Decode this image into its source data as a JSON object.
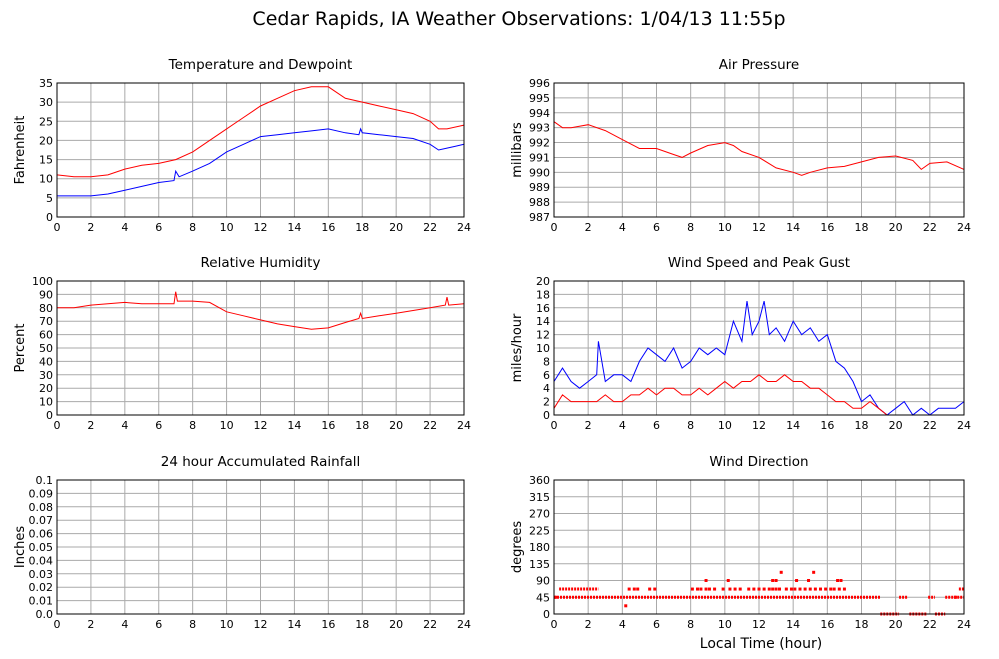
{
  "title": "Cedar Rapids, IA Weather Observations: 1/04/13 11:55p",
  "footer_xlabel": "Local Time (hour)",
  "colors": {
    "primary": "#ff0000",
    "secondary": "#0000ff",
    "grid": "#aaaaaa",
    "axis": "#000000"
  },
  "chart_data": [
    {
      "id": "temp",
      "type": "line",
      "title": "Temperature and Dewpoint",
      "xlabel": "",
      "ylabel": "Fahrenheit",
      "xlim": [
        0,
        24
      ],
      "ylim": [
        0,
        35
      ],
      "xticks": [
        "0",
        "2",
        "4",
        "6",
        "8",
        "10",
        "12",
        "14",
        "16",
        "18",
        "20",
        "22",
        "24"
      ],
      "yticks": [
        "0",
        "5",
        "10",
        "15",
        "20",
        "25",
        "30",
        "35"
      ],
      "grid": true,
      "series": [
        {
          "color": "#ff0000",
          "x": [
            0,
            1,
            2,
            3,
            4,
            5,
            6,
            7,
            8,
            9,
            10,
            11,
            12,
            13,
            14,
            15,
            16,
            17,
            18,
            19,
            20,
            21,
            22,
            22.5,
            23,
            24
          ],
          "y": [
            11,
            10.5,
            10.5,
            11,
            12.5,
            13.5,
            14,
            15,
            17,
            20,
            23,
            26,
            29,
            31,
            33,
            34,
            34,
            31,
            30,
            29,
            28,
            27,
            25,
            23,
            23,
            24
          ]
        },
        {
          "color": "#0000ff",
          "x": [
            0,
            1,
            2,
            3,
            4,
            5,
            6,
            6.9,
            7,
            7.2,
            8,
            9,
            10,
            11,
            12,
            13,
            14,
            15,
            16,
            17,
            17.8,
            17.9,
            18,
            19,
            20,
            21,
            22,
            22.5,
            23,
            23.5,
            24
          ],
          "y": [
            5.5,
            5.5,
            5.5,
            6,
            7,
            8,
            9,
            9.5,
            12,
            10.5,
            12,
            14,
            17,
            19,
            21,
            21.5,
            22,
            22.5,
            23,
            22,
            21.5,
            23,
            22,
            21.5,
            21,
            20.5,
            19,
            17.5,
            18,
            18.5,
            19
          ]
        }
      ]
    },
    {
      "id": "pressure",
      "type": "line",
      "title": "Air Pressure",
      "xlabel": "",
      "ylabel": "millibars",
      "xlim": [
        0,
        24
      ],
      "ylim": [
        987,
        996
      ],
      "xticks": [
        "0",
        "2",
        "4",
        "6",
        "8",
        "10",
        "12",
        "14",
        "16",
        "18",
        "20",
        "22",
        "24"
      ],
      "yticks": [
        "987",
        "988",
        "989",
        "990",
        "991",
        "992",
        "993",
        "994",
        "995",
        "996"
      ],
      "grid": true,
      "series": [
        {
          "color": "#ff0000",
          "x": [
            0,
            0.5,
            1,
            2,
            3,
            4,
            5,
            6,
            7,
            7.5,
            8,
            9,
            10,
            10.5,
            11,
            12,
            13,
            14,
            14.5,
            15,
            16,
            17,
            18,
            19,
            20,
            21,
            21.5,
            22,
            23,
            24
          ],
          "y": [
            993.4,
            993,
            993,
            993.2,
            992.8,
            992.2,
            991.6,
            991.6,
            991.2,
            991,
            991.3,
            991.8,
            992,
            991.8,
            991.4,
            991,
            990.3,
            990,
            989.8,
            990,
            990.3,
            990.4,
            990.7,
            991,
            991.1,
            990.8,
            990.2,
            990.6,
            990.7,
            990.2
          ]
        }
      ]
    },
    {
      "id": "humidity",
      "type": "line",
      "title": "Relative Humidity",
      "xlabel": "",
      "ylabel": "Percent",
      "xlim": [
        0,
        24
      ],
      "ylim": [
        0,
        100
      ],
      "xticks": [
        "0",
        "2",
        "4",
        "6",
        "8",
        "10",
        "12",
        "14",
        "16",
        "18",
        "20",
        "22",
        "24"
      ],
      "yticks": [
        "0",
        "10",
        "20",
        "30",
        "40",
        "50",
        "60",
        "70",
        "80",
        "90",
        "100"
      ],
      "grid": true,
      "series": [
        {
          "color": "#ff0000",
          "x": [
            0,
            1,
            2,
            3,
            4,
            5,
            6,
            6.9,
            7,
            7.1,
            8,
            9,
            10,
            11,
            12,
            13,
            14,
            15,
            16,
            17,
            17.8,
            17.9,
            18,
            19,
            20,
            21,
            22,
            22.9,
            23,
            23.1,
            24
          ],
          "y": [
            80,
            80,
            82,
            83,
            84,
            83,
            83,
            83,
            92,
            85,
            85,
            84,
            77,
            74,
            71,
            68,
            66,
            64,
            65,
            69,
            72,
            76,
            72,
            74,
            76,
            78,
            80,
            82,
            88,
            82,
            83
          ]
        }
      ]
    },
    {
      "id": "wind",
      "type": "line",
      "title": "Wind Speed and Peak Gust",
      "xlabel": "",
      "ylabel": "miles/hour",
      "xlim": [
        0,
        24
      ],
      "ylim": [
        0,
        20
      ],
      "xticks": [
        "0",
        "2",
        "4",
        "6",
        "8",
        "10",
        "12",
        "14",
        "16",
        "18",
        "20",
        "22",
        "24"
      ],
      "yticks": [
        "0",
        "2",
        "4",
        "6",
        "8",
        "10",
        "12",
        "14",
        "16",
        "18",
        "20"
      ],
      "grid": true,
      "series": [
        {
          "color": "#0000ff",
          "x": [
            0,
            0.5,
            1,
            1.5,
            2,
            2.5,
            2.6,
            3,
            3.5,
            4,
            4.5,
            5,
            5.5,
            6,
            6.5,
            7,
            7.5,
            8,
            8.5,
            9,
            9.5,
            10,
            10.5,
            11,
            11.3,
            11.6,
            12,
            12.3,
            12.6,
            13,
            13.5,
            14,
            14.5,
            15,
            15.5,
            16,
            16.5,
            17,
            17.5,
            18,
            18.5,
            19,
            19.5,
            20,
            20.5,
            21,
            21.5,
            22,
            22.5,
            23,
            23.5,
            24
          ],
          "y": [
            5,
            7,
            5,
            4,
            5,
            6,
            11,
            5,
            6,
            6,
            5,
            8,
            10,
            9,
            8,
            10,
            7,
            8,
            10,
            9,
            10,
            9,
            14,
            11,
            17,
            12,
            14,
            17,
            12,
            13,
            11,
            14,
            12,
            13,
            11,
            12,
            8,
            7,
            5,
            2,
            3,
            1,
            0,
            1,
            2,
            0,
            1,
            0,
            1,
            1,
            1,
            2
          ]
        },
        {
          "color": "#ff0000",
          "x": [
            0,
            0.5,
            1,
            1.5,
            2,
            2.5,
            3,
            3.5,
            4,
            4.5,
            5,
            5.5,
            6,
            6.5,
            7,
            7.5,
            8,
            8.5,
            9,
            9.5,
            10,
            10.5,
            11,
            11.5,
            12,
            12.5,
            13,
            13.5,
            14,
            14.5,
            15,
            15.5,
            16,
            16.5,
            17,
            17.5,
            18,
            18.5,
            19,
            19.5,
            20,
            21,
            22,
            23,
            24
          ],
          "y": [
            1,
            3,
            2,
            2,
            2,
            2,
            3,
            2,
            2,
            3,
            3,
            4,
            3,
            4,
            4,
            3,
            3,
            4,
            3,
            4,
            5,
            4,
            5,
            5,
            6,
            5,
            5,
            6,
            5,
            5,
            4,
            4,
            3,
            2,
            2,
            1,
            1,
            2,
            1,
            0,
            0,
            0,
            0,
            0,
            0
          ]
        }
      ]
    },
    {
      "id": "rain",
      "type": "line",
      "title": "24 hour Accumulated Rainfall",
      "xlabel": "",
      "ylabel": "Inches",
      "xlim": [
        0,
        24
      ],
      "ylim": [
        0,
        0.1
      ],
      "xticks": [
        "0",
        "2",
        "4",
        "6",
        "8",
        "10",
        "12",
        "14",
        "16",
        "18",
        "20",
        "22",
        "24"
      ],
      "yticks": [
        "0.0",
        "0.01",
        "0.02",
        "0.03",
        "0.04",
        "0.05",
        "0.06",
        "0.07",
        "0.08",
        "0.09",
        "0.1"
      ],
      "grid": true,
      "series": [
        {
          "color": "#ff0000",
          "x": [
            0,
            24
          ],
          "y": [
            0,
            0
          ]
        }
      ]
    },
    {
      "id": "direction",
      "type": "scatter",
      "title": "Wind Direction",
      "xlabel": "",
      "ylabel": "degrees",
      "xlim": [
        0,
        24
      ],
      "ylim": [
        0,
        360
      ],
      "xticks": [
        "0",
        "2",
        "4",
        "6",
        "8",
        "10",
        "12",
        "14",
        "16",
        "18",
        "20",
        "22",
        "24"
      ],
      "yticks": [
        "0",
        "45",
        "90",
        "135",
        "180",
        "225",
        "270",
        "315",
        "360"
      ],
      "grid": true,
      "series": [
        {
          "color": "#ff0000",
          "segments": [
            {
              "x0": 0,
              "x1": 19.1,
              "y": 45
            },
            {
              "x0": 20.2,
              "x1": 20.7,
              "y": 45
            },
            {
              "x0": 21.9,
              "x1": 22.3,
              "y": 45
            },
            {
              "x0": 22.9,
              "x1": 24,
              "y": 45
            },
            {
              "x0": 19.1,
              "x1": 20.2,
              "y": 0
            },
            {
              "x0": 20.8,
              "x1": 21.8,
              "y": 0
            },
            {
              "x0": 22.3,
              "x1": 22.9,
              "y": 0
            },
            {
              "x0": 0.3,
              "x1": 2.6,
              "y": 67
            },
            {
              "x0": 23.7,
              "x1": 24,
              "y": 67
            }
          ],
          "x": [
            0.1,
            4.4,
            4.7,
            4.9,
            5.6,
            5.9,
            8.1,
            8.4,
            8.6,
            8.9,
            9.1,
            9.4,
            9.9,
            10.3,
            10.6,
            10.9,
            11.4,
            11.7,
            12.0,
            12.3,
            12.6,
            12.8,
            13.0,
            13.2,
            13.6,
            13.9,
            14.1,
            14.4,
            14.7,
            15.0,
            15.3,
            15.6,
            15.9,
            16.2,
            16.4,
            16.7,
            17.0,
            8.9,
            10.2,
            12.8,
            13.0,
            13.3,
            14.2,
            14.9,
            15.2,
            16.6,
            16.8,
            4.2,
            23.5
          ],
          "y": [
            45,
            67,
            67,
            67,
            67,
            67,
            67,
            67,
            67,
            67,
            67,
            67,
            67,
            67,
            67,
            67,
            67,
            67,
            67,
            67,
            67,
            67,
            67,
            67,
            67,
            67,
            67,
            67,
            67,
            67,
            67,
            67,
            67,
            67,
            67,
            67,
            67,
            90,
            90,
            90,
            90,
            112,
            90,
            90,
            112,
            90,
            90,
            22,
            45
          ]
        }
      ]
    }
  ]
}
